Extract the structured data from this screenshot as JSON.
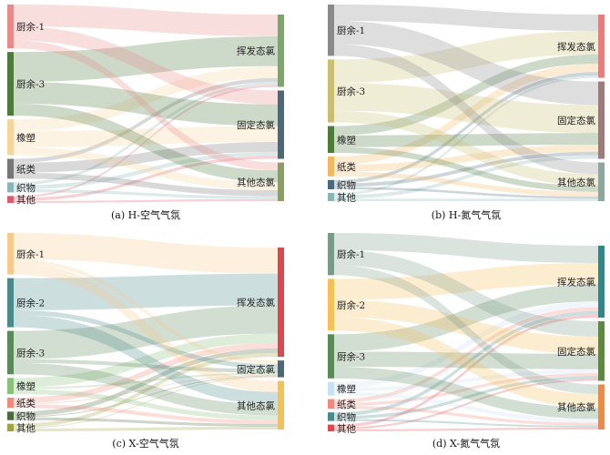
{
  "panels": [
    {
      "caption": "(a) H-空气气氛",
      "sources": [
        {
          "label": "厨余-1",
          "color": "#e88a8a"
        },
        {
          "label": "厨余-3",
          "color": "#4e7a3c"
        },
        {
          "label": "橡塑",
          "color": "#f7d49a"
        },
        {
          "label": "纸类",
          "color": "#777777"
        },
        {
          "label": "织物",
          "color": "#8ab5b5"
        },
        {
          "label": "其他",
          "color": "#e05a6a"
        }
      ],
      "targets": [
        {
          "label": "挥发态氯",
          "color": "#7aa86a"
        },
        {
          "label": "固定态氯",
          "color": "#4a6a7a"
        },
        {
          "label": "其他态氯",
          "color": "#8aa060"
        }
      ],
      "flows": [
        [
          22,
          14,
          8
        ],
        [
          30,
          22,
          12
        ],
        [
          12,
          16,
          8
        ],
        [
          4,
          10,
          6
        ],
        [
          3,
          4,
          3
        ],
        [
          2,
          3,
          2
        ]
      ]
    },
    {
      "caption": "(b) H-氮气气氛",
      "sources": [
        {
          "label": "厨余-1",
          "color": "#8a8a8a"
        },
        {
          "label": "厨余-3",
          "color": "#c8c070"
        },
        {
          "label": "橡塑",
          "color": "#4e7a3c"
        },
        {
          "label": "纸类",
          "color": "#f5b860"
        },
        {
          "label": "织物",
          "color": "#4a6a7a"
        },
        {
          "label": "其他",
          "color": "#8ab5b5"
        }
      ],
      "targets": [
        {
          "label": "挥发态氯",
          "color": "#f07a7a"
        },
        {
          "label": "固定态氯",
          "color": "#a07a7a"
        },
        {
          "label": "其他态氯",
          "color": "#8aa8a0"
        }
      ],
      "flows": [
        [
          14,
          20,
          10
        ],
        [
          20,
          24,
          10
        ],
        [
          8,
          10,
          5
        ],
        [
          7,
          6,
          4
        ],
        [
          3,
          3,
          2
        ],
        [
          2,
          3,
          2
        ]
      ]
    },
    {
      "caption": "(c) X-空气气氛",
      "sources": [
        {
          "label": "厨余-1",
          "color": "#f7c98a"
        },
        {
          "label": "厨余-2",
          "color": "#4a8a8a"
        },
        {
          "label": "厨余-3",
          "color": "#5a8a5a"
        },
        {
          "label": "橡塑",
          "color": "#8ac07a"
        },
        {
          "label": "纸类",
          "color": "#f08a7a"
        },
        {
          "label": "织物",
          "color": "#4a6a3a"
        },
        {
          "label": "其他",
          "color": "#a0a040"
        }
      ],
      "targets": [
        {
          "label": "挥发态氯",
          "color": "#e0474c"
        },
        {
          "label": "固定态氯",
          "color": "#4a6a7a"
        },
        {
          "label": "其他态氯",
          "color": "#f7c055"
        }
      ],
      "flows": [
        [
          28,
          4,
          12
        ],
        [
          34,
          5,
          13
        ],
        [
          30,
          4,
          12
        ],
        [
          10,
          2,
          5
        ],
        [
          6,
          1,
          4
        ],
        [
          5,
          1,
          3
        ],
        [
          4,
          1,
          3
        ]
      ]
    },
    {
      "caption": "(d) X-氮气气氛",
      "sources": [
        {
          "label": "厨余-1",
          "color": "#7a9a8a"
        },
        {
          "label": "厨余-2",
          "color": "#f7c055"
        },
        {
          "label": "厨余-3",
          "color": "#5a8a5a"
        },
        {
          "label": "橡塑",
          "color": "#c8e0f0"
        },
        {
          "label": "纸类",
          "color": "#f08a7a"
        },
        {
          "label": "织物",
          "color": "#4a8a8a"
        },
        {
          "label": "其他",
          "color": "#e0474c"
        }
      ],
      "targets": [
        {
          "label": "挥发态氯",
          "color": "#2a8a8a"
        },
        {
          "label": "固定态氯",
          "color": "#5a8a3a"
        },
        {
          "label": "其他态氯",
          "color": "#f08a40"
        }
      ],
      "flows": [
        [
          18,
          16,
          10
        ],
        [
          22,
          18,
          14
        ],
        [
          18,
          16,
          12
        ],
        [
          6,
          4,
          4
        ],
        [
          4,
          3,
          3
        ],
        [
          4,
          3,
          2
        ],
        [
          3,
          2,
          2
        ]
      ]
    }
  ]
}
